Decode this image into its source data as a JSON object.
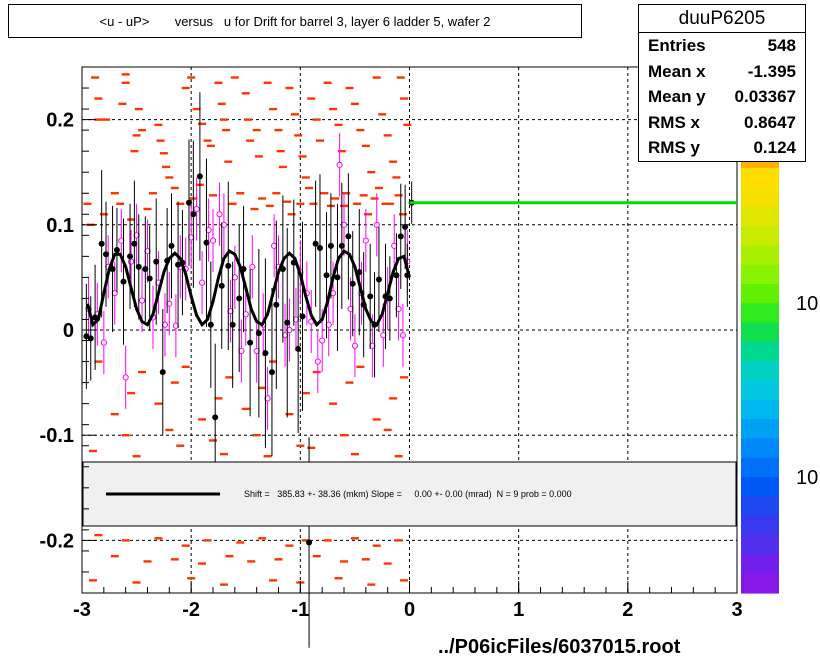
{
  "title": "<u - uP>       versus   u for Drift for barrel 3, layer 6 ladder 5, wafer 2",
  "stats": {
    "name": "duuP6205",
    "rows": [
      {
        "label": "Entries",
        "value": "548"
      },
      {
        "label": "Mean x",
        "value": "-1.395"
      },
      {
        "label": "Mean y",
        "value": "0.03367"
      },
      {
        "label": "RMS x",
        "value": "0.8647"
      },
      {
        "label": "RMS y",
        "value": "0.124"
      }
    ]
  },
  "fit_label": "Shift =   385.83 +- 38.36 (mkm) Slope =     0.00 +- 0.00 (mrad)  N = 9 prob = 0.000",
  "footer": "../P06icFiles/6037015.root",
  "colors": {
    "hist_cells": "#ff3300",
    "profile_points": "#000000",
    "open_markers": "#ff00ff",
    "fit_curve": "#000000",
    "horizontal_fit_line": "#00dd00",
    "grid": "#000000"
  },
  "chart_data": {
    "type": "scatter",
    "xlim": [
      -3,
      3
    ],
    "ylim": [
      -0.25,
      0.25
    ],
    "x_ticks": [
      "-3",
      "-2",
      "-1",
      "0",
      "1",
      "2",
      "3"
    ],
    "y_ticks": [
      "-0.2",
      "-0.1",
      "0",
      "0.1",
      "0.2"
    ],
    "grid": true,
    "colorbar_labels": [
      "10",
      "10"
    ],
    "profile": {
      "x": [
        -2.96,
        -2.92,
        -2.88,
        -2.82,
        -2.78,
        -2.72,
        -2.68,
        -2.62,
        -2.56,
        -2.52,
        -2.48,
        -2.42,
        -2.38,
        -2.32,
        -2.26,
        -2.22,
        -2.18,
        -2.12,
        -2.08,
        -2.02,
        -1.98,
        -1.92,
        -1.86,
        -1.82,
        -1.78,
        -1.72,
        -1.66,
        -1.62,
        -1.56,
        -1.52,
        -1.46,
        -1.38,
        -1.32,
        -1.26,
        -1.22,
        -1.16,
        -1.12,
        -1.06,
        -1.02,
        -0.98,
        -0.92,
        -0.86,
        -0.82,
        -0.76,
        -0.72,
        -0.66,
        -0.62,
        -0.56,
        -0.52,
        -0.46,
        -0.42,
        -0.36,
        -0.32,
        -0.28,
        -0.22,
        -0.18,
        -0.12,
        -0.08,
        -0.04,
        -0.02,
        0.02
      ],
      "y": [
        -0.006,
        -0.008,
        0.012,
        0.082,
        0.072,
        0.058,
        0.076,
        0.046,
        0.07,
        0.082,
        0.06,
        0.058,
        0.049,
        0.065,
        -0.04,
        0.066,
        0.08,
        0.062,
        0.064,
        0.121,
        0.11,
        0.146,
        0.083,
        0.005,
        -0.083,
        0.042,
        0.061,
        0.005,
        0.03,
        0.058,
        -0.012,
        -0.003,
        -0.022,
        -0.04,
        0.024,
        0.058,
        0.007,
        0.064,
        -0.018,
        0.013,
        -0.202,
        0.082,
        0.078,
        0.052,
        0.08,
        0.05,
        0.08,
        0.089,
        0.044,
        0.055,
        0.024,
        0.032,
        0.005,
        0.048,
        0.032,
        0.03,
        0.052,
        0.089,
        0.098,
        0.052,
        0.121
      ],
      "yerr": [
        0.05,
        0.04,
        0.05,
        0.07,
        0.05,
        0.06,
        0.04,
        0.06,
        0.05,
        0.06,
        0.05,
        0.05,
        0.05,
        0.06,
        0.06,
        0.05,
        0.05,
        0.06,
        0.05,
        0.06,
        0.07,
        0.08,
        0.08,
        0.06,
        0.07,
        0.06,
        0.08,
        0.06,
        0.07,
        0.06,
        0.07,
        0.08,
        0.09,
        0.08,
        0.08,
        0.07,
        0.09,
        0.06,
        0.08,
        0.09,
        0.1,
        0.06,
        0.07,
        0.06,
        0.05,
        0.07,
        0.06,
        0.06,
        0.05,
        0.06,
        0.05,
        0.05,
        0.05,
        0.05,
        0.05,
        0.04,
        0.04,
        0.05,
        0.04,
        0.03,
        0.02
      ]
    },
    "open_markers": {
      "x": [
        -2.94,
        -2.86,
        -2.8,
        -2.76,
        -2.7,
        -2.64,
        -2.6,
        -2.55,
        -2.5,
        -2.45,
        -2.4,
        -2.35,
        -2.3,
        -2.24,
        -2.2,
        -2.14,
        -2.1,
        -2.05,
        -2.0,
        -1.95,
        -1.9,
        -1.84,
        -1.8,
        -1.74,
        -1.7,
        -1.64,
        -1.6,
        -1.54,
        -1.5,
        -1.44,
        -1.4,
        -1.34,
        -1.3,
        -1.24,
        -1.2,
        -1.14,
        -1.1,
        -1.04,
        -1.0,
        -0.94,
        -0.9,
        -0.84,
        -0.8,
        -0.74,
        -0.7,
        -0.64,
        -0.6,
        -0.54,
        -0.5,
        -0.44,
        -0.4,
        -0.34,
        -0.3,
        -0.24,
        -0.2,
        -0.14,
        -0.1,
        -0.06,
        -0.02
      ],
      "y": [
        0.02,
        0.015,
        -0.012,
        0.06,
        0.035,
        0.085,
        -0.045,
        0.065,
        0.09,
        0.028,
        0.075,
        0.012,
        0.045,
        0.005,
        0.025,
        0.004,
        0.06,
        0.058,
        0.088,
        0.115,
        0.045,
        0.095,
        0.085,
        0.11,
        0.1,
        0.018,
        0.05,
        -0.02,
        0.015,
        0.06,
        -0.02,
        0.005,
        -0.065,
        0.08,
        0.06,
        -0.005,
        0.0,
        0.01,
        0.055,
        0.035,
        0.008,
        -0.03,
        -0.01,
        0.005,
        0.035,
        0.157,
        0.1,
        0.02,
        -0.015,
        0.035,
        0.085,
        -0.015,
        0.1,
        -0.005,
        0.03,
        0.08,
        0.02,
        -0.005,
        0.065
      ],
      "yerr": [
        0.03,
        0.03,
        0.03,
        0.03,
        0.03,
        0.03,
        0.03,
        0.03,
        0.03,
        0.03,
        0.03,
        0.03,
        0.03,
        0.03,
        0.03,
        0.03,
        0.03,
        0.03,
        0.03,
        0.03,
        0.03,
        0.03,
        0.03,
        0.03,
        0.03,
        0.03,
        0.03,
        0.03,
        0.03,
        0.03,
        0.03,
        0.03,
        0.03,
        0.03,
        0.03,
        0.03,
        0.03,
        0.03,
        0.03,
        0.03,
        0.03,
        0.03,
        0.03,
        0.03,
        0.03,
        0.03,
        0.03,
        0.03,
        0.03,
        0.03,
        0.03,
        0.03,
        0.03,
        0.03,
        0.03,
        0.03,
        0.03,
        0.03,
        0.03
      ]
    },
    "hist_cells": {
      "x": [
        -2.88,
        -2.85,
        -2.6,
        -2.6,
        -2.63,
        -2.85,
        -2.78,
        -2.48,
        -2.45,
        -2.5,
        -2.52,
        -2.3,
        -2.28,
        -2.25,
        -2.23,
        -2.2,
        -2.05,
        -2.0,
        -1.95,
        -1.9,
        -1.85,
        -1.82,
        -1.75,
        -1.72,
        -1.7,
        -1.68,
        -1.66,
        -1.6,
        -1.5,
        -1.48,
        -1.46,
        -1.4,
        -1.38,
        -1.3,
        -1.25,
        -1.2,
        -1.18,
        -1.16,
        -1.1,
        -1.05,
        -1.02,
        -0.98,
        -0.95,
        -0.9,
        -0.85,
        -0.82,
        -0.75,
        -0.7,
        -0.65,
        -0.62,
        -0.55,
        -0.5,
        -0.45,
        -0.4,
        -0.35,
        -0.3,
        -0.25,
        -0.2,
        -0.15,
        -0.12,
        -0.08,
        -0.05,
        -0.02,
        -2.95,
        -2.92,
        -2.8,
        -2.7,
        -2.65,
        -2.55,
        -2.4,
        -2.35,
        -2.15,
        -2.1,
        -1.98,
        -1.92,
        -1.8,
        -1.62,
        -1.55,
        -1.42,
        -1.35,
        -1.28,
        -1.22,
        -1.12,
        -1.08,
        -1.0,
        -0.92,
        -0.88,
        -0.78,
        -0.72,
        -0.68,
        -0.6,
        -0.58,
        -0.48,
        -0.42,
        -0.38,
        -0.32,
        -0.28,
        -0.22,
        -0.18,
        -0.1,
        -0.06,
        -2.85,
        -2.45,
        -2.05,
        -1.65,
        -1.25,
        -0.85,
        -0.45,
        -0.05,
        -2.55,
        -2.15,
        -1.75,
        -1.35,
        -0.95,
        -0.55,
        -0.15,
        -2.7,
        -2.3,
        -1.9,
        -1.5,
        -1.1,
        -0.7,
        -0.3,
        -2.6,
        -2.2,
        -1.8,
        -1.4,
        -1.0,
        -0.6,
        -0.2,
        -2.9,
        -2.5,
        -2.1,
        -1.7,
        -1.3,
        -0.9,
        -0.5,
        -0.1
      ],
      "y": [
        0.24,
        0.22,
        0.243,
        0.235,
        0.215,
        0.2,
        0.2,
        0.21,
        0.19,
        0.185,
        0.17,
        0.195,
        0.18,
        0.168,
        0.155,
        0.145,
        0.23,
        0.24,
        0.21,
        0.196,
        0.18,
        0.175,
        0.235,
        0.215,
        0.2,
        0.19,
        0.16,
        0.24,
        0.225,
        0.2,
        0.18,
        0.19,
        0.165,
        0.235,
        0.21,
        0.19,
        0.17,
        0.155,
        0.23,
        0.205,
        0.185,
        0.165,
        0.145,
        0.22,
        0.2,
        0.18,
        0.235,
        0.21,
        0.195,
        0.17,
        0.23,
        0.215,
        0.19,
        0.175,
        0.15,
        0.24,
        0.205,
        0.185,
        0.16,
        0.145,
        0.24,
        0.22,
        0.195,
        0.12,
        0.1,
        0.11,
        0.13,
        0.12,
        0.105,
        0.115,
        0.13,
        0.135,
        0.12,
        0.125,
        0.138,
        0.128,
        0.12,
        0.13,
        0.115,
        0.125,
        0.118,
        0.13,
        0.122,
        0.11,
        0.12,
        0.135,
        0.12,
        0.13,
        0.118,
        0.125,
        0.118,
        0.13,
        0.12,
        0.128,
        0.11,
        0.125,
        0.135,
        0.12,
        0.12,
        0.128,
        0.11,
        -0.03,
        -0.04,
        -0.035,
        -0.045,
        -0.03,
        -0.04,
        -0.035,
        -0.045,
        -0.06,
        -0.05,
        -0.065,
        -0.055,
        -0.06,
        -0.05,
        -0.065,
        -0.08,
        -0.07,
        -0.085,
        -0.075,
        -0.08,
        -0.07,
        -0.085,
        -0.1,
        -0.095,
        -0.105,
        -0.1,
        -0.11,
        -0.1,
        -0.095,
        -0.115,
        -0.12,
        -0.11,
        -0.118,
        -0.12,
        -0.112,
        -0.118,
        -0.12
      ]
    },
    "hist_cells_below": {
      "x": [
        -2.85,
        -2.6,
        -2.3,
        -2.05,
        -1.85,
        -1.55,
        -1.35,
        -1.1,
        -0.95,
        -0.75,
        -0.5,
        -0.3,
        -0.1,
        -2.7,
        -2.4,
        -2.15,
        -1.9,
        -1.65,
        -1.45,
        -1.2,
        -0.85,
        -0.6,
        -0.4,
        -0.2,
        -2.9,
        -2.5,
        -2.0,
        -1.7,
        -1.25,
        -1.0,
        -0.65,
        -0.35,
        -0.05
      ],
      "y": [
        -0.195,
        -0.2,
        -0.198,
        -0.205,
        -0.2,
        -0.202,
        -0.198,
        -0.205,
        -0.2,
        -0.2,
        -0.198,
        -0.205,
        -0.2,
        -0.215,
        -0.22,
        -0.218,
        -0.222,
        -0.215,
        -0.22,
        -0.218,
        -0.215,
        -0.22,
        -0.218,
        -0.222,
        -0.238,
        -0.24,
        -0.236,
        -0.242,
        -0.238,
        -0.24,
        -0.236,
        -0.242,
        -0.238
      ]
    },
    "fit_curve": {
      "x": [
        -2.95,
        -2.9,
        -2.85,
        -2.8,
        -2.75,
        -2.7,
        -2.65,
        -2.6,
        -2.55,
        -2.5,
        -2.45,
        -2.4,
        -2.35,
        -2.3,
        -2.25,
        -2.2,
        -2.15,
        -2.1,
        -2.05,
        -2.0,
        -1.95,
        -1.9,
        -1.85,
        -1.8,
        -1.75,
        -1.7,
        -1.65,
        -1.6,
        -1.55,
        -1.5,
        -1.45,
        -1.4,
        -1.35,
        -1.3,
        -1.25,
        -1.2,
        -1.15,
        -1.1,
        -1.05,
        -1.0,
        -0.95,
        -0.9,
        -0.85,
        -0.8,
        -0.75,
        -0.7,
        -0.65,
        -0.6,
        -0.55,
        -0.5,
        -0.45,
        -0.4,
        -0.35,
        -0.3,
        -0.25,
        -0.2,
        -0.15,
        -0.1,
        -0.05,
        0.0
      ],
      "y": [
        0.025,
        0.005,
        0.01,
        0.035,
        0.058,
        0.072,
        0.072,
        0.06,
        0.04,
        0.02,
        0.008,
        0.005,
        0.015,
        0.035,
        0.055,
        0.068,
        0.073,
        0.068,
        0.053,
        0.032,
        0.014,
        0.005,
        0.01,
        0.027,
        0.05,
        0.068,
        0.075,
        0.072,
        0.06,
        0.04,
        0.02,
        0.008,
        0.005,
        0.015,
        0.035,
        0.055,
        0.068,
        0.073,
        0.068,
        0.053,
        0.032,
        0.014,
        0.005,
        0.01,
        0.027,
        0.05,
        0.068,
        0.075,
        0.072,
        0.06,
        0.04,
        0.02,
        0.008,
        0.005,
        0.015,
        0.035,
        0.055,
        0.068,
        0.07,
        0.05
      ]
    },
    "horizontal_line": {
      "x": [
        0.0,
        3.0
      ],
      "y": 0.121
    }
  }
}
